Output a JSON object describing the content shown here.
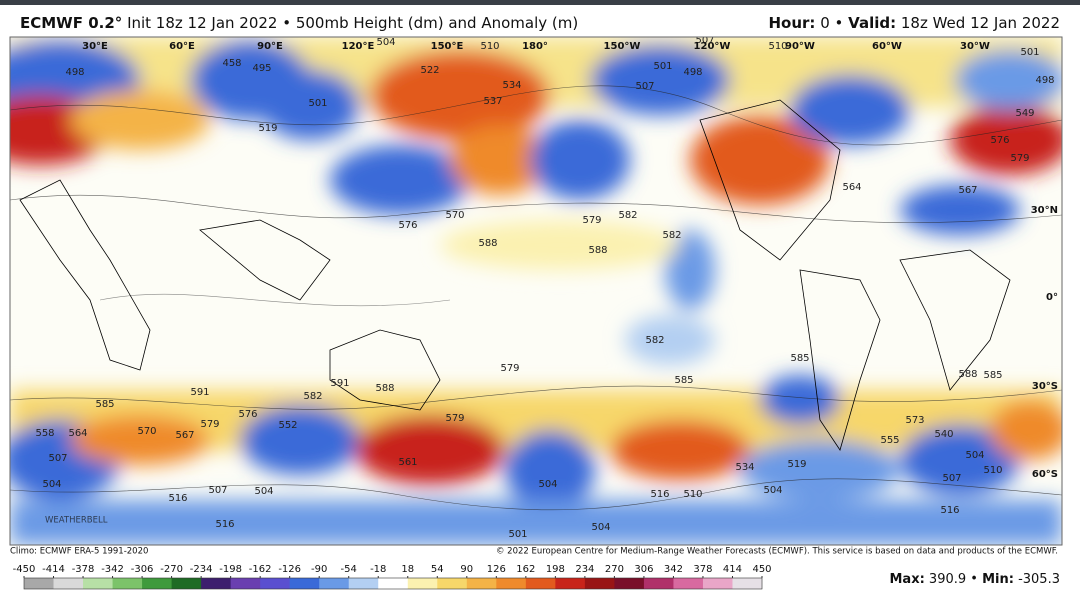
{
  "header": {
    "model": "ECMWF 0.2°",
    "description": "Init 18z 12 Jan 2022 • 500mb Height (dm) and Anomaly (m)",
    "hour_label": "Hour:",
    "hour_value": "0",
    "separator": "•",
    "valid_label": "Valid:",
    "valid_value": "18z Wed 12 Jan 2022"
  },
  "map": {
    "longitudes": [
      "30°E",
      "60°E",
      "90°E",
      "120°E",
      "150°E",
      "180°",
      "150°W",
      "120°W",
      "90°W",
      "60°W",
      "30°W"
    ],
    "latitudes": [
      "30°N",
      "0°",
      "30°S",
      "60°S"
    ],
    "logo": "WEATHERBELL",
    "contour_labels": [
      "498",
      "495",
      "458",
      "501",
      "519",
      "522",
      "537",
      "534",
      "507",
      "501",
      "498",
      "504",
      "510",
      "507",
      "510",
      "501",
      "498",
      "549",
      "576",
      "579",
      "567",
      "564",
      "576",
      "570",
      "579",
      "582",
      "588",
      "588",
      "582",
      "582",
      "585",
      "585",
      "588",
      "585",
      "579",
      "591",
      "588",
      "582",
      "585",
      "591",
      "558",
      "564",
      "570",
      "567",
      "579",
      "576",
      "552",
      "561",
      "579",
      "504",
      "507",
      "504",
      "516",
      "507",
      "504",
      "516",
      "501",
      "504",
      "516",
      "510",
      "504",
      "519",
      "534",
      "540",
      "504",
      "507",
      "510",
      "516",
      "555",
      "573"
    ]
  },
  "footer": {
    "climo": "Climo: ECMWF ERA-5 1991-2020",
    "copyright": "© 2022 European Centre for Medium-Range Weather Forecasts (ECMWF). This service is based on data and products of the ECMWF.",
    "max_label": "Max:",
    "max_value": "390.9",
    "min_label": "Min:",
    "min_value": "-305.3"
  },
  "colorbar": {
    "ticks": [
      -450,
      -414,
      -378,
      -342,
      -306,
      -270,
      -234,
      -198,
      -162,
      -126,
      -90,
      -54,
      -18,
      18,
      54,
      90,
      126,
      162,
      198,
      234,
      270,
      306,
      342,
      378,
      414,
      450
    ],
    "colors": [
      "#a8a8a8",
      "#d9d9d9",
      "#b7e0a6",
      "#7cc36a",
      "#3f9a3c",
      "#1f6b25",
      "#3d1f6e",
      "#6a3fb0",
      "#5a4fd0",
      "#3a6ad8",
      "#6a9ae6",
      "#b3cff2",
      "#ffffff",
      "#fbf1b0",
      "#f7d76a",
      "#f4b347",
      "#ef8a2c",
      "#e25a1e",
      "#c8241a",
      "#991515",
      "#7a0f2a",
      "#b0306a",
      "#d86aa0",
      "#e9a6c8",
      "#e6e0e6"
    ]
  }
}
